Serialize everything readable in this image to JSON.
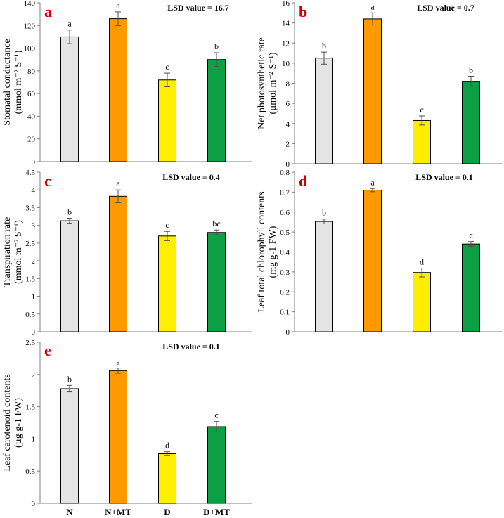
{
  "colors": {
    "N": "#e4e4e4",
    "N+MT": "#ff9900",
    "D": "#ffee00",
    "D+MT": "#0aa043",
    "axis": "#7f7f7f",
    "bar_border": "#000000",
    "panel_letter": "#d40000",
    "error_bar": "#4d4d4d"
  },
  "chart_data": [
    {
      "type": "bar",
      "panel": "a",
      "lsd": "LSD value = 16.7",
      "ylabel_line1": "Stomatal conductance",
      "ylabel_line2": "(mmol m⁻² S⁻¹)",
      "categories": [
        "N",
        "N+MT",
        "D",
        "D+MT"
      ],
      "values": [
        110,
        126,
        72,
        90
      ],
      "errors": [
        6,
        6,
        6,
        6
      ],
      "letters": [
        "a",
        "a",
        "c",
        "b"
      ],
      "ylim": [
        0,
        140
      ],
      "yticks": [
        0,
        20,
        40,
        60,
        80,
        100,
        120,
        140
      ],
      "ytick_labels": [
        "0",
        "20",
        "40",
        "60",
        "80",
        "100",
        "120",
        "140"
      ],
      "show_categories": false
    },
    {
      "type": "bar",
      "panel": "b",
      "lsd": "LSD value = 0.7",
      "ylabel_line1": "Net photosynthetic rate",
      "ylabel_line2": "(µmol m⁻² S⁻¹)",
      "categories": [
        "N",
        "N+MT",
        "D",
        "D+MT"
      ],
      "values": [
        10.5,
        14.4,
        4.3,
        8.2
      ],
      "errors": [
        0.6,
        0.6,
        0.45,
        0.5
      ],
      "letters": [
        "b",
        "a",
        "c",
        "b"
      ],
      "ylim": [
        0,
        16
      ],
      "yticks": [
        0,
        2,
        4,
        6,
        8,
        10,
        12,
        14,
        16
      ],
      "ytick_labels": [
        "0",
        "2",
        "4",
        "6",
        "8",
        "10",
        "12",
        "14",
        "16"
      ],
      "show_categories": false
    },
    {
      "type": "bar",
      "panel": "c",
      "lsd": "LSD value = 0.4",
      "ylabel_line1": "Transpiration rate",
      "ylabel_line2": "(mmol m⁻² S⁻¹)",
      "categories": [
        "N",
        "N+MT",
        "D",
        "D+MT"
      ],
      "values": [
        3.13,
        3.82,
        2.7,
        2.8
      ],
      "errors": [
        0.07,
        0.18,
        0.13,
        0.07
      ],
      "letters": [
        "b",
        "a",
        "c",
        "bc"
      ],
      "ylim": [
        0,
        4.5
      ],
      "yticks": [
        0,
        0.5,
        1,
        1.5,
        2,
        2.5,
        3,
        3.5,
        4,
        4.5
      ],
      "ytick_labels": [
        "0",
        "0.5",
        "1",
        "1.5",
        "2",
        "2.5",
        "3",
        "3.5",
        "4",
        "4.5"
      ],
      "show_categories": false
    },
    {
      "type": "bar",
      "panel": "d",
      "lsd": "LSD value = 0.1",
      "ylabel_line1": "Leaf total chlorophyll contents",
      "ylabel_line2": "(mg g-1 FW)",
      "categories": [
        "N",
        "N+MT",
        "D",
        "D+MT"
      ],
      "values": [
        0.553,
        0.71,
        0.297,
        0.44
      ],
      "errors": [
        0.012,
        0.008,
        0.022,
        0.012
      ],
      "letters": [
        "b",
        "a",
        "d",
        "c"
      ],
      "ylim": [
        0,
        0.8
      ],
      "yticks": [
        0,
        0.1,
        0.2,
        0.3,
        0.4,
        0.5,
        0.6,
        0.7,
        0.8
      ],
      "ytick_labels": [
        "0",
        "0.1",
        "0.2",
        "0.3",
        "0.4",
        "0.5",
        "0.6",
        "0.7",
        "0.8"
      ],
      "show_categories": false
    },
    {
      "type": "bar",
      "panel": "e",
      "lsd": "LSD value = 0.1",
      "ylabel_line1": "Leaf carotenoid contents",
      "ylabel_line2": "(µg g-1 FW)",
      "categories": [
        "N",
        "N+MT",
        "D",
        "D+MT"
      ],
      "values": [
        1.78,
        2.06,
        0.77,
        1.19
      ],
      "errors": [
        0.05,
        0.04,
        0.03,
        0.08
      ],
      "letters": [
        "b",
        "a",
        "d",
        "c"
      ],
      "ylim": [
        0,
        2.5
      ],
      "yticks": [
        0,
        0.5,
        1,
        1.5,
        2,
        2.5
      ],
      "ytick_labels": [
        "0",
        "0.5",
        "1",
        "1.5",
        "2",
        "2.5"
      ],
      "show_categories": true
    }
  ]
}
